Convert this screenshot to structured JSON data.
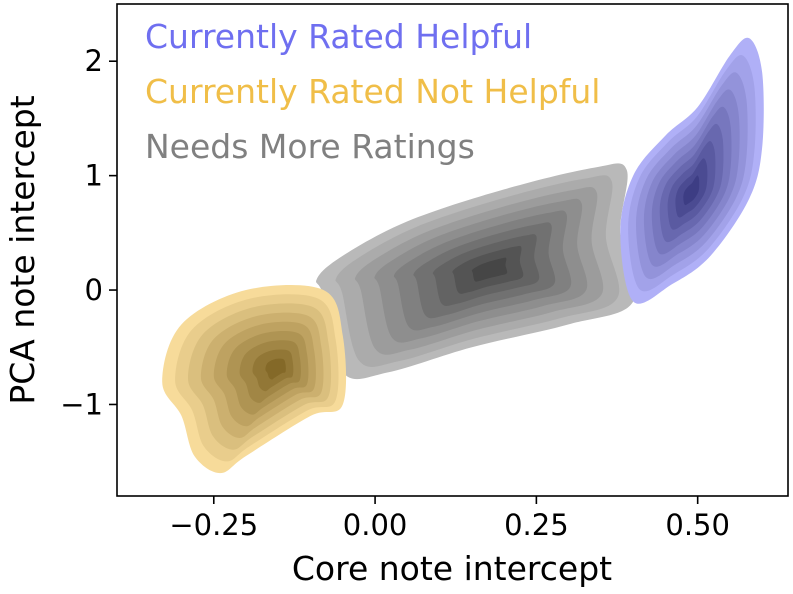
{
  "chart_data": {
    "type": "kde-contour",
    "xlabel": "Core note intercept",
    "ylabel": "PCA note intercept",
    "xlim": [
      -0.4,
      0.64
    ],
    "ylim": [
      -1.8,
      2.5
    ],
    "x_ticks": [
      {
        "value": -0.25,
        "label": "−0.25"
      },
      {
        "value": 0.0,
        "label": "0.00"
      },
      {
        "value": 0.25,
        "label": "0.25"
      },
      {
        "value": 0.5,
        "label": "0.50"
      }
    ],
    "y_ticks": [
      {
        "value": 2,
        "label": "2"
      },
      {
        "value": 1,
        "label": "1"
      },
      {
        "value": 0,
        "label": "0"
      },
      {
        "value": -1,
        "label": "−1"
      }
    ],
    "grid": false,
    "legend_position": "top-left",
    "series": [
      {
        "name": "Needs More Ratings",
        "color": "#808080",
        "peak": [
          0.18,
          0.18
        ],
        "outline": [
          [
            -0.08,
            -0.05
          ],
          [
            -0.05,
            -0.72
          ],
          [
            0.02,
            -0.72
          ],
          [
            0.15,
            -0.5
          ],
          [
            0.3,
            -0.3
          ],
          [
            0.4,
            -0.1
          ],
          [
            0.38,
            0.5
          ],
          [
            0.39,
            1.05
          ],
          [
            0.34,
            1.07
          ],
          [
            0.2,
            0.88
          ],
          [
            0.05,
            0.6
          ],
          [
            -0.05,
            0.3
          ],
          [
            -0.09,
            0.1
          ]
        ],
        "levels": 9
      },
      {
        "name": "Currently Rated Helpful",
        "color": "#6f6ff0",
        "peak": [
          0.49,
          0.85
        ],
        "outline": [
          [
            0.4,
            -0.1
          ],
          [
            0.46,
            0.05
          ],
          [
            0.52,
            0.3
          ],
          [
            0.58,
            0.8
          ],
          [
            0.6,
            1.25
          ],
          [
            0.6,
            1.9
          ],
          [
            0.58,
            2.2
          ],
          [
            0.55,
            2.05
          ],
          [
            0.5,
            1.6
          ],
          [
            0.45,
            1.35
          ],
          [
            0.4,
            1.0
          ],
          [
            0.38,
            0.5
          ]
        ],
        "levels": 9
      },
      {
        "name": "Currently Rated Not Helpful",
        "color": "#f0be48",
        "peak": [
          -0.15,
          -0.68
        ],
        "outline": [
          [
            -0.3,
            -0.3
          ],
          [
            -0.2,
            0.0
          ],
          [
            -0.08,
            0.0
          ],
          [
            -0.05,
            -0.4
          ],
          [
            -0.05,
            -1.0
          ],
          [
            -0.1,
            -1.1
          ],
          [
            -0.2,
            -1.45
          ],
          [
            -0.24,
            -1.6
          ],
          [
            -0.28,
            -1.45
          ],
          [
            -0.3,
            -1.1
          ],
          [
            -0.33,
            -0.8
          ]
        ],
        "levels": 9
      }
    ]
  }
}
